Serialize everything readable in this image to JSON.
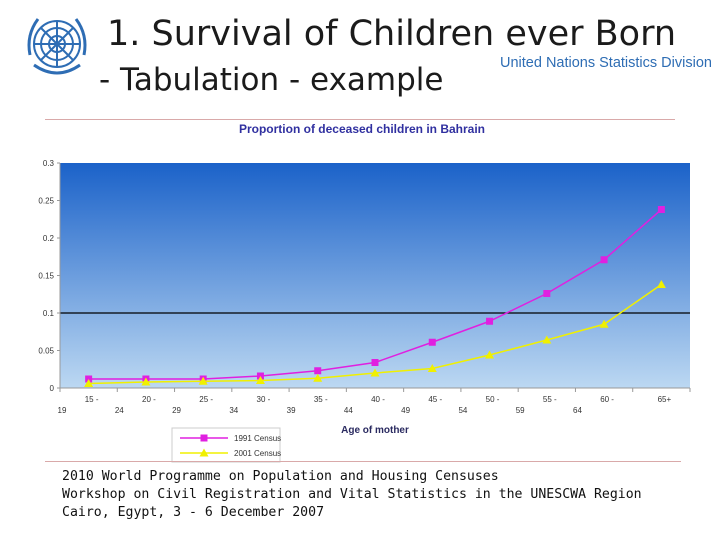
{
  "slide": {
    "title_line1": "1. Survival of Children ever Born",
    "title_line2": "- Tabulation - example",
    "organization": "United Nations Statistics Division",
    "logo_icon": "un-emblem-icon",
    "footer": [
      "2010 World Programme on Population and Housing Censuses",
      "Workshop on Civil Registration and Vital Statistics in the UNESCWA Region",
      "Cairo, Egypt, 3 - 6 December 2007"
    ]
  },
  "chart_data": {
    "type": "line",
    "title": "Proportion of deceased children in Bahrain",
    "xlabel": "Age of mother",
    "ylabel": "",
    "ylim": [
      0,
      0.3
    ],
    "yticks": [
      "0",
      "0.05",
      "0.1",
      "0.15",
      "0.2",
      "0.25",
      "0.3"
    ],
    "categories": [
      [
        "15 -",
        "19"
      ],
      [
        "20 -",
        "24"
      ],
      [
        "25 -",
        "29"
      ],
      [
        "30 -",
        "34"
      ],
      [
        "35 -",
        "39"
      ],
      [
        "40 -",
        "44"
      ],
      [
        "45 -",
        "49"
      ],
      [
        "50 -",
        "54"
      ],
      [
        "55 -",
        "59"
      ],
      [
        "60 -",
        "64"
      ],
      [
        "65+",
        ""
      ]
    ],
    "series": [
      {
        "name": "1991 Census",
        "color": "#e020e0",
        "marker": "square",
        "values": [
          0.012,
          0.012,
          0.012,
          0.016,
          0.023,
          0.034,
          0.061,
          0.089,
          0.126,
          0.171,
          0.238
        ]
      },
      {
        "name": "2001 Census",
        "color": "#f0f000",
        "marker": "triangle",
        "values": [
          0.006,
          0.008,
          0.009,
          0.01,
          0.013,
          0.02,
          0.026,
          0.044,
          0.064,
          0.085,
          0.138
        ]
      }
    ],
    "reference_line": 0.1,
    "colors": {
      "plot_top": "#1b62c9",
      "plot_bottom": "#bcd8f2",
      "title": "#3030a0",
      "axis_text": "#333333"
    }
  }
}
